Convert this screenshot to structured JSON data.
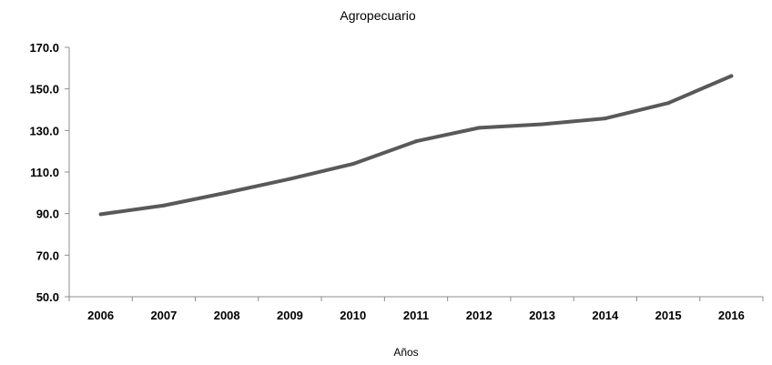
{
  "chart_data": {
    "type": "line",
    "title": "Agropecuario",
    "xlabel": "Años",
    "ylabel": "",
    "categories": [
      "2006",
      "2007",
      "2008",
      "2009",
      "2010",
      "2011",
      "2012",
      "2013",
      "2014",
      "2015",
      "2016"
    ],
    "series": [
      {
        "values": [
          89.7,
          93.9,
          100.1,
          106.7,
          113.9,
          124.8,
          131.3,
          133.0,
          135.8,
          143.2,
          156.2
        ]
      }
    ],
    "ylim": [
      50,
      170
    ],
    "yticks": [
      "50.0",
      "70.0",
      "90.0",
      "110.0",
      "130.0",
      "150.0",
      "170.0"
    ],
    "ytick_values": [
      50,
      70,
      90,
      110,
      130,
      150,
      170
    ],
    "grid": false,
    "legend": "none",
    "line_color": "#595959"
  }
}
